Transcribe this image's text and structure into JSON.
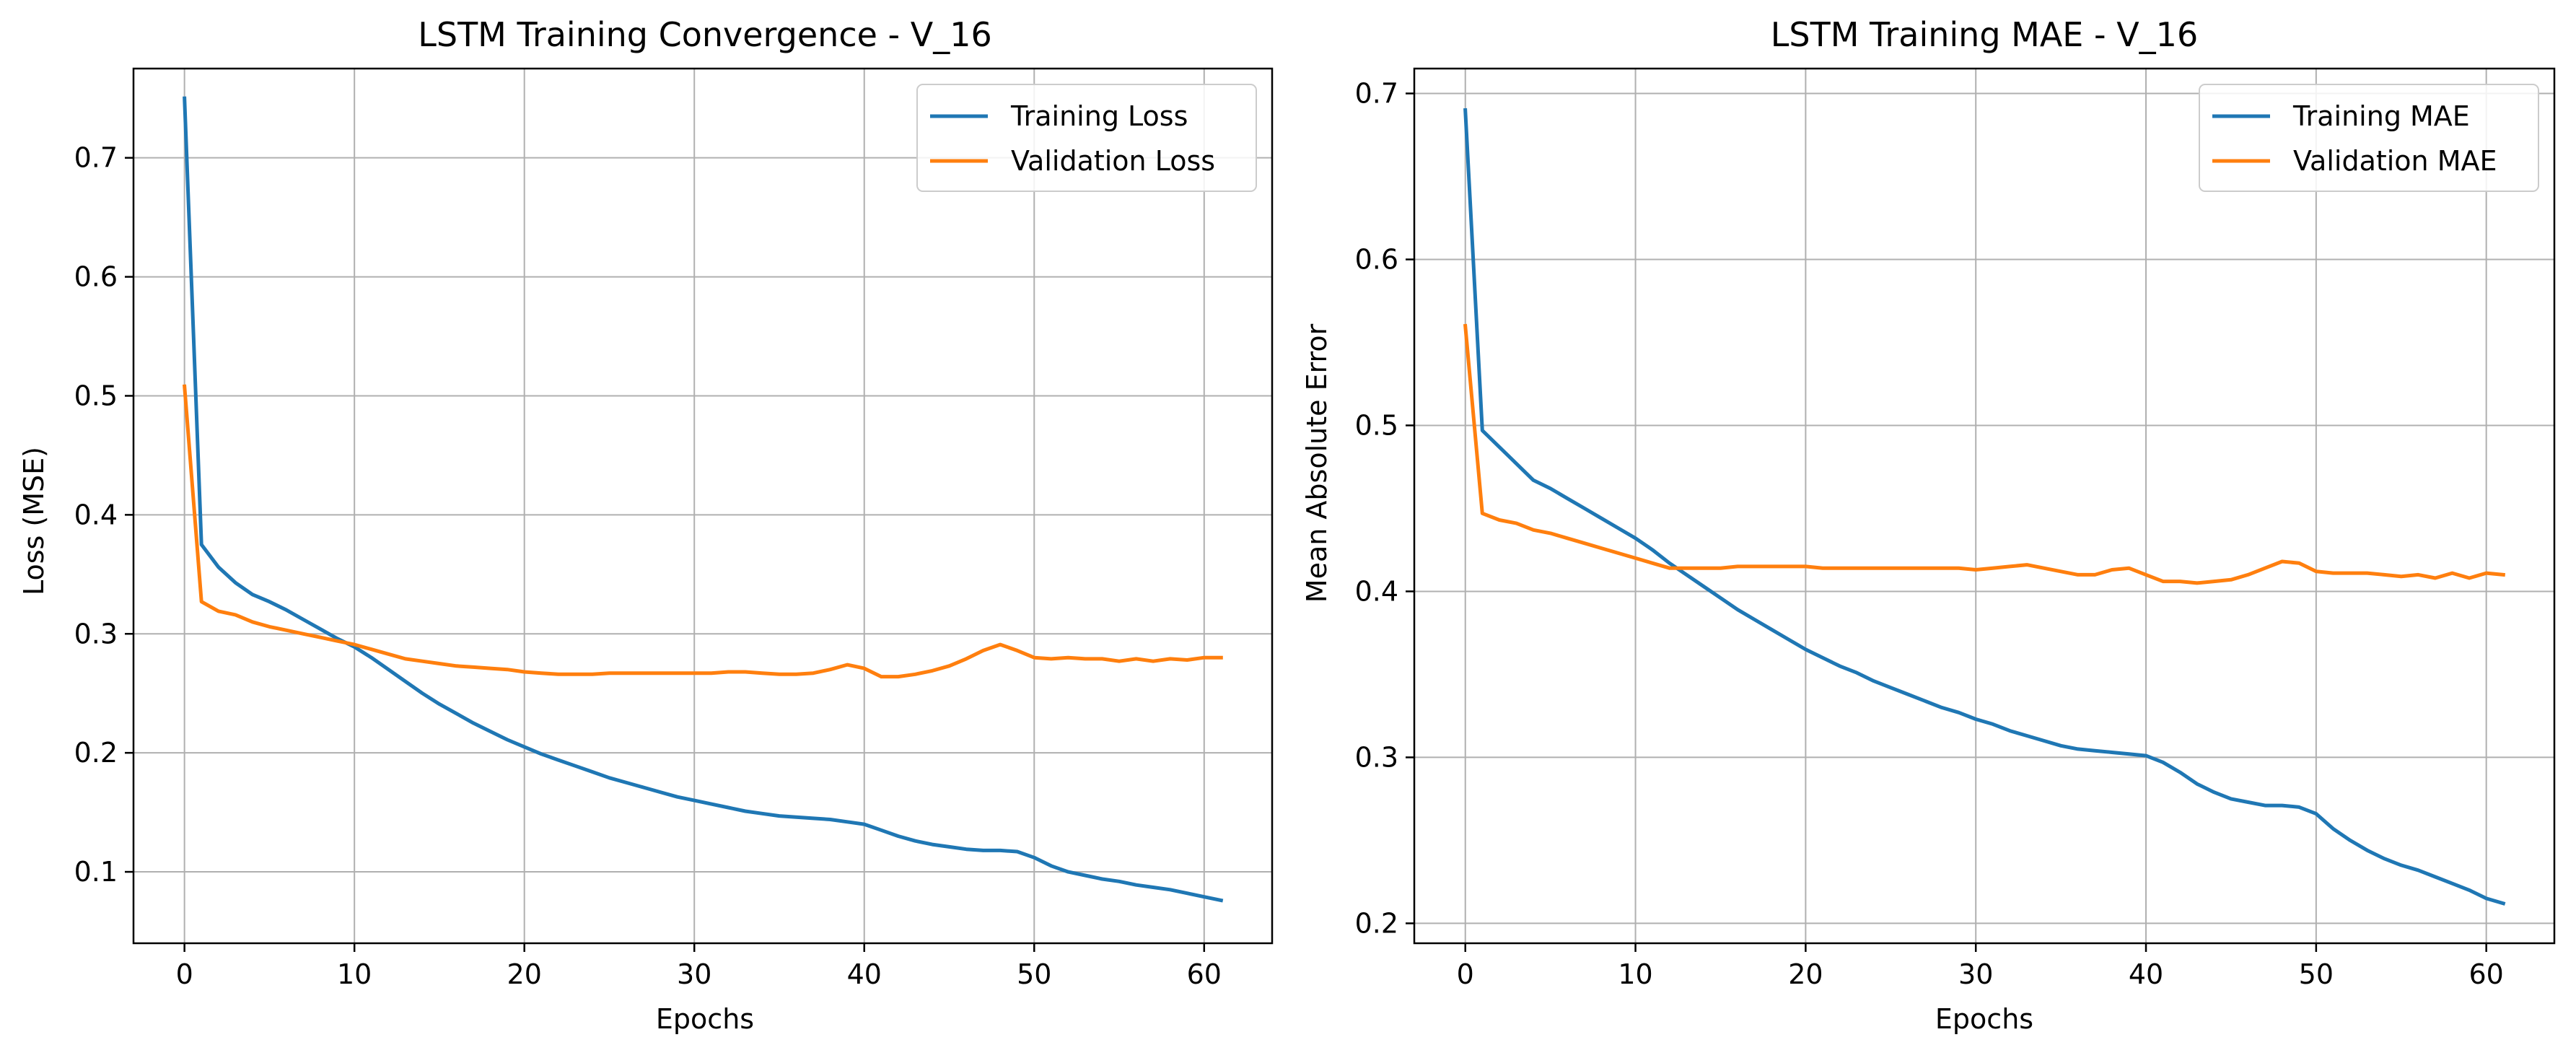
{
  "chart_data": [
    {
      "type": "line",
      "title": "LSTM Training Convergence - V_16",
      "xlabel": "Epochs",
      "ylabel": "Loss (MSE)",
      "xlim": [
        -3,
        64
      ],
      "ylim": [
        0.04,
        0.775
      ],
      "xticks": [
        0,
        10,
        20,
        30,
        40,
        50,
        60
      ],
      "yticks": [
        0.1,
        0.2,
        0.3,
        0.4,
        0.5,
        0.6,
        0.7
      ],
      "grid": true,
      "legend_position": "top-right",
      "x": [
        0,
        1,
        2,
        3,
        4,
        5,
        6,
        7,
        8,
        9,
        10,
        11,
        12,
        13,
        14,
        15,
        16,
        17,
        18,
        19,
        20,
        21,
        22,
        23,
        24,
        25,
        26,
        27,
        28,
        29,
        30,
        31,
        32,
        33,
        34,
        35,
        36,
        37,
        38,
        39,
        40,
        41,
        42,
        43,
        44,
        45,
        46,
        47,
        48,
        49,
        50,
        51,
        52,
        53,
        54,
        55,
        56,
        57,
        58,
        59,
        60,
        61
      ],
      "series": [
        {
          "name": "Training Loss",
          "color": "#1f77b4",
          "values": [
            0.75,
            0.375,
            0.356,
            0.343,
            0.333,
            0.327,
            0.32,
            0.312,
            0.304,
            0.296,
            0.289,
            0.28,
            0.27,
            0.26,
            0.25,
            0.241,
            0.233,
            0.225,
            0.218,
            0.211,
            0.205,
            0.199,
            0.194,
            0.189,
            0.184,
            0.179,
            0.175,
            0.171,
            0.167,
            0.163,
            0.16,
            0.157,
            0.154,
            0.151,
            0.149,
            0.147,
            0.146,
            0.145,
            0.144,
            0.142,
            0.14,
            0.135,
            0.13,
            0.126,
            0.123,
            0.121,
            0.119,
            0.118,
            0.118,
            0.117,
            0.112,
            0.105,
            0.1,
            0.097,
            0.094,
            0.092,
            0.089,
            0.087,
            0.085,
            0.082,
            0.079,
            0.076
          ]
        },
        {
          "name": "Validation Loss",
          "color": "#ff7f0e",
          "values": [
            0.508,
            0.327,
            0.319,
            0.316,
            0.31,
            0.306,
            0.303,
            0.3,
            0.297,
            0.294,
            0.291,
            0.287,
            0.283,
            0.279,
            0.277,
            0.275,
            0.273,
            0.272,
            0.271,
            0.27,
            0.268,
            0.267,
            0.266,
            0.266,
            0.266,
            0.267,
            0.267,
            0.267,
            0.267,
            0.267,
            0.267,
            0.267,
            0.268,
            0.268,
            0.267,
            0.266,
            0.266,
            0.267,
            0.27,
            0.274,
            0.271,
            0.264,
            0.264,
            0.266,
            0.269,
            0.273,
            0.279,
            0.286,
            0.291,
            0.286,
            0.28,
            0.279,
            0.28,
            0.279,
            0.279,
            0.277,
            0.279,
            0.277,
            0.279,
            0.278,
            0.28,
            0.28
          ]
        }
      ]
    },
    {
      "type": "line",
      "title": "LSTM Training MAE - V_16",
      "xlabel": "Epochs",
      "ylabel": "Mean Absolute Error",
      "xlim": [
        -3,
        64
      ],
      "ylim": [
        0.188,
        0.715
      ],
      "xticks": [
        0,
        10,
        20,
        30,
        40,
        50,
        60
      ],
      "yticks": [
        0.2,
        0.3,
        0.4,
        0.5,
        0.6,
        0.7
      ],
      "grid": true,
      "legend_position": "top-right",
      "x": [
        0,
        1,
        2,
        3,
        4,
        5,
        6,
        7,
        8,
        9,
        10,
        11,
        12,
        13,
        14,
        15,
        16,
        17,
        18,
        19,
        20,
        21,
        22,
        23,
        24,
        25,
        26,
        27,
        28,
        29,
        30,
        31,
        32,
        33,
        34,
        35,
        36,
        37,
        38,
        39,
        40,
        41,
        42,
        43,
        44,
        45,
        46,
        47,
        48,
        49,
        50,
        51,
        52,
        53,
        54,
        55,
        56,
        57,
        58,
        59,
        60,
        61
      ],
      "series": [
        {
          "name": "Training MAE",
          "color": "#1f77b4",
          "values": [
            0.69,
            0.497,
            0.487,
            0.477,
            0.467,
            0.462,
            0.456,
            0.45,
            0.444,
            0.438,
            0.432,
            0.425,
            0.417,
            0.41,
            0.403,
            0.396,
            0.389,
            0.383,
            0.377,
            0.371,
            0.365,
            0.36,
            0.355,
            0.351,
            0.346,
            0.342,
            0.338,
            0.334,
            0.33,
            0.327,
            0.323,
            0.32,
            0.316,
            0.313,
            0.31,
            0.307,
            0.305,
            0.304,
            0.303,
            0.302,
            0.301,
            0.297,
            0.291,
            0.284,
            0.279,
            0.275,
            0.273,
            0.271,
            0.271,
            0.27,
            0.266,
            0.257,
            0.25,
            0.244,
            0.239,
            0.235,
            0.232,
            0.228,
            0.224,
            0.22,
            0.215,
            0.212
          ]
        },
        {
          "name": "Validation MAE",
          "color": "#ff7f0e",
          "values": [
            0.56,
            0.447,
            0.443,
            0.441,
            0.437,
            0.435,
            0.432,
            0.429,
            0.426,
            0.423,
            0.42,
            0.417,
            0.414,
            0.414,
            0.414,
            0.414,
            0.415,
            0.415,
            0.415,
            0.415,
            0.415,
            0.414,
            0.414,
            0.414,
            0.414,
            0.414,
            0.414,
            0.414,
            0.414,
            0.414,
            0.413,
            0.414,
            0.415,
            0.416,
            0.414,
            0.412,
            0.41,
            0.41,
            0.413,
            0.414,
            0.41,
            0.406,
            0.406,
            0.405,
            0.406,
            0.407,
            0.41,
            0.414,
            0.418,
            0.417,
            0.412,
            0.411,
            0.411,
            0.411,
            0.41,
            0.409,
            0.41,
            0.408,
            0.411,
            0.408,
            0.411,
            0.41
          ]
        }
      ]
    }
  ]
}
